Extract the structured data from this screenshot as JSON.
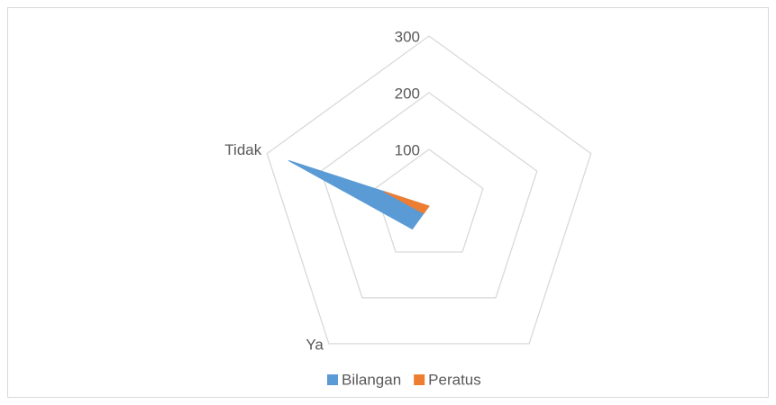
{
  "chart_data": {
    "type": "radar",
    "categories": [
      null,
      null,
      null,
      "Ya",
      "Tidak"
    ],
    "series": [
      {
        "name": "Bilangan",
        "color": "#5b9bd5",
        "values": [
          0,
          0,
          0,
          50,
          260
        ]
      },
      {
        "name": "Peratus",
        "color": "#ed7d31",
        "values": [
          0,
          0,
          0,
          16,
          84
        ]
      }
    ],
    "ylim": [
      0,
      300
    ],
    "yticks": [
      0,
      100,
      200,
      300
    ],
    "grid": true,
    "legend": "bottom"
  }
}
